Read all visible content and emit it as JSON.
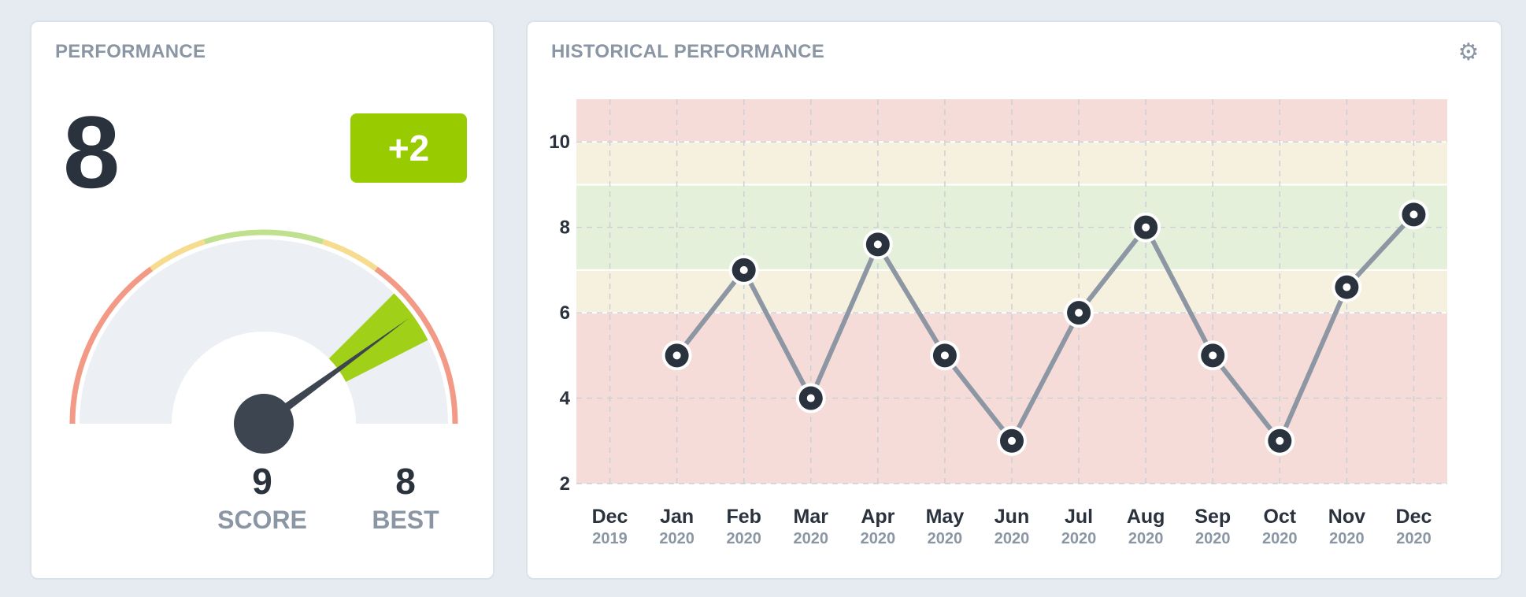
{
  "performance": {
    "title": "PERFORMANCE",
    "current_score": "8",
    "delta": "+2",
    "score_value": "9",
    "score_label": "SCORE",
    "best_value": "8",
    "best_label": "BEST",
    "gauge": {
      "min": 0,
      "max": 10,
      "value": 8
    }
  },
  "historical": {
    "title": "HISTORICAL PERFORMANCE",
    "settings_icon": "gear-icon"
  },
  "colors": {
    "accent_green": "#99cc00",
    "zone_red": "#f6dcd8",
    "zone_yellow": "#f6f0de",
    "zone_green": "#e5f0da",
    "line": "#8d96a3",
    "marker": "#2a323d"
  },
  "chart_data": {
    "type": "line",
    "title": "HISTORICAL PERFORMANCE",
    "xlabel": "",
    "ylabel": "",
    "categories": [
      {
        "month": "Dec",
        "year": "2019"
      },
      {
        "month": "Jan",
        "year": "2020"
      },
      {
        "month": "Feb",
        "year": "2020"
      },
      {
        "month": "Mar",
        "year": "2020"
      },
      {
        "month": "Apr",
        "year": "2020"
      },
      {
        "month": "May",
        "year": "2020"
      },
      {
        "month": "Jun",
        "year": "2020"
      },
      {
        "month": "Jul",
        "year": "2020"
      },
      {
        "month": "Aug",
        "year": "2020"
      },
      {
        "month": "Sep",
        "year": "2020"
      },
      {
        "month": "Oct",
        "year": "2020"
      },
      {
        "month": "Nov",
        "year": "2020"
      },
      {
        "month": "Dec",
        "year": "2020"
      }
    ],
    "values": [
      null,
      5,
      7,
      4,
      7.6,
      5,
      3,
      6,
      8,
      5,
      3,
      6.6,
      8.3
    ],
    "ylim": [
      2,
      11
    ],
    "yticks": [
      2,
      4,
      6,
      8,
      10
    ],
    "grid": true,
    "bands": [
      {
        "from": 2,
        "to": 6,
        "zone": "red"
      },
      {
        "from": 6,
        "to": 7,
        "zone": "yellow"
      },
      {
        "from": 7,
        "to": 9,
        "zone": "green"
      },
      {
        "from": 9,
        "to": 10,
        "zone": "yellow"
      },
      {
        "from": 10,
        "to": 11,
        "zone": "red"
      }
    ]
  }
}
